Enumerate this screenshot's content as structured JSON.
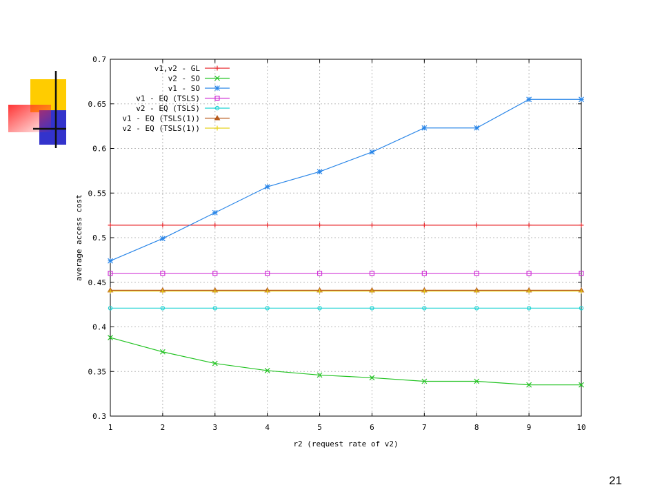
{
  "slide": {
    "page_number": "21"
  },
  "chart_data": {
    "type": "line",
    "x": [
      1,
      2,
      3,
      4,
      5,
      6,
      7,
      8,
      9,
      10
    ],
    "xlabel": "r2 (request rate of v2)",
    "ylabel": "average access cost",
    "xlim": [
      1,
      10
    ],
    "ylim": [
      0.3,
      0.7
    ],
    "xticks": [
      "1",
      "2",
      "3",
      "4",
      "5",
      "6",
      "7",
      "8",
      "9",
      "10"
    ],
    "yticks": [
      "0.3",
      "0.35",
      "0.4",
      "0.45",
      "0.5",
      "0.55",
      "0.6",
      "0.65",
      "0.7"
    ],
    "grid": true,
    "legend_position": "top-left",
    "series": [
      {
        "name": "v1,v2 - GL",
        "color": "#e8262a",
        "marker": "plus",
        "values": [
          0.514,
          0.514,
          0.514,
          0.514,
          0.514,
          0.514,
          0.514,
          0.514,
          0.514,
          0.514
        ]
      },
      {
        "name": "v2 - SO",
        "color": "#22c322",
        "marker": "x",
        "values": [
          0.388,
          0.372,
          0.359,
          0.351,
          0.346,
          0.343,
          0.339,
          0.339,
          0.335,
          0.335
        ]
      },
      {
        "name": "v1 - SO",
        "color": "#2a86e8",
        "marker": "star",
        "values": [
          0.474,
          0.499,
          0.528,
          0.557,
          0.574,
          0.596,
          0.623,
          0.623,
          0.655,
          0.655
        ]
      },
      {
        "name": "v1 - EQ (TSLS)",
        "color": "#d034d6",
        "marker": "square",
        "values": [
          0.46,
          0.46,
          0.46,
          0.46,
          0.46,
          0.46,
          0.46,
          0.46,
          0.46,
          0.46
        ]
      },
      {
        "name": "v2 - EQ (TSLS)",
        "color": "#1ed3d3",
        "marker": "circle",
        "values": [
          0.421,
          0.421,
          0.421,
          0.421,
          0.421,
          0.421,
          0.421,
          0.421,
          0.421,
          0.421
        ]
      },
      {
        "name": "v1 - EQ (TSLS(1))",
        "color": "#b85c1e",
        "marker": "triangle",
        "values": [
          0.441,
          0.441,
          0.441,
          0.441,
          0.441,
          0.441,
          0.441,
          0.441,
          0.441,
          0.441
        ]
      },
      {
        "name": "v2 - EQ (TSLS(1))",
        "color": "#e8d21c",
        "marker": "plus",
        "values": [
          0.44,
          0.44,
          0.44,
          0.44,
          0.44,
          0.44,
          0.44,
          0.44,
          0.44,
          0.44
        ]
      }
    ]
  }
}
